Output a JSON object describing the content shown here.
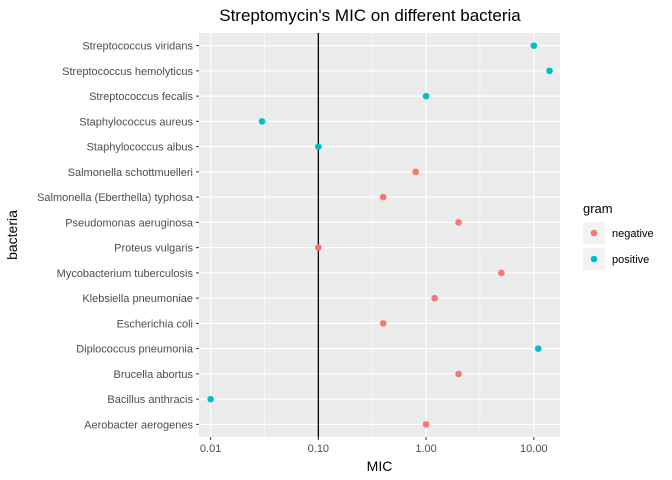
{
  "chart_data": {
    "type": "scatter",
    "title": "Streptomycin's MIC on different bacteria",
    "xlabel": "MIC",
    "ylabel": "bacteria",
    "x_scale": "log10",
    "xlim": [
      0.0078,
      17.5
    ],
    "x_ticks": [
      0.01,
      0.1,
      1,
      10
    ],
    "x_tick_labels": [
      "0.01",
      "0.10",
      "1.00",
      "10.00"
    ],
    "reference_line_x": 0.1,
    "categories": [
      "Aerobacter aerogenes",
      "Bacillus anthracis",
      "Brucella abortus",
      "Diplococcus pneumonia",
      "Escherichia coli",
      "Klebsiella pneumoniae",
      "Mycobacterium tuberculosis",
      "Proteus vulgaris",
      "Pseudomonas aeruginosa",
      "Salmonella (Eberthella) typhosa",
      "Salmonella schottmuelleri",
      "Staphylococcus albus",
      "Staphylococcus aureus",
      "Streptococcus fecalis",
      "Streptococcus hemolyticus",
      "Streptococcus viridans"
    ],
    "points": [
      {
        "bacteria": "Aerobacter aerogenes",
        "mic": 1.0,
        "gram": "negative"
      },
      {
        "bacteria": "Bacillus anthracis",
        "mic": 0.01,
        "gram": "positive"
      },
      {
        "bacteria": "Brucella abortus",
        "mic": 2.0,
        "gram": "negative"
      },
      {
        "bacteria": "Diplococcus pneumonia",
        "mic": 11.0,
        "gram": "positive"
      },
      {
        "bacteria": "Escherichia coli",
        "mic": 0.4,
        "gram": "negative"
      },
      {
        "bacteria": "Klebsiella pneumoniae",
        "mic": 1.2,
        "gram": "negative"
      },
      {
        "bacteria": "Mycobacterium tuberculosis",
        "mic": 5.0,
        "gram": "negative"
      },
      {
        "bacteria": "Proteus vulgaris",
        "mic": 0.1,
        "gram": "negative"
      },
      {
        "bacteria": "Pseudomonas aeruginosa",
        "mic": 2.0,
        "gram": "negative"
      },
      {
        "bacteria": "Salmonella (Eberthella) typhosa",
        "mic": 0.4,
        "gram": "negative"
      },
      {
        "bacteria": "Salmonella schottmuelleri",
        "mic": 0.8,
        "gram": "negative"
      },
      {
        "bacteria": "Staphylococcus albus",
        "mic": 0.1,
        "gram": "positive"
      },
      {
        "bacteria": "Staphylococcus aureus",
        "mic": 0.03,
        "gram": "positive"
      },
      {
        "bacteria": "Streptococcus fecalis",
        "mic": 1.0,
        "gram": "positive"
      },
      {
        "bacteria": "Streptococcus hemolyticus",
        "mic": 14.0,
        "gram": "positive"
      },
      {
        "bacteria": "Streptococcus viridans",
        "mic": 10.0,
        "gram": "positive"
      }
    ],
    "legend": {
      "title": "gram",
      "position": "right",
      "items": [
        {
          "label": "negative",
          "color": "#F8766D"
        },
        {
          "label": "positive",
          "color": "#00BFC4"
        }
      ]
    },
    "grid": true,
    "panel_background": "#EBEBEB",
    "gridline_color": "#FFFFFF",
    "reference_line_color": "#000000"
  }
}
